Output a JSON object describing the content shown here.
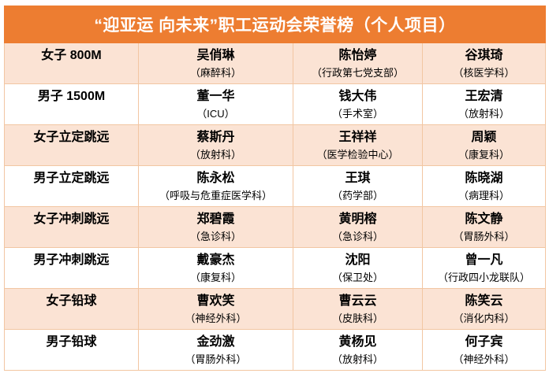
{
  "title": "“迎亚运 向未来”职工运动会荣誉榜（个人项目）",
  "colors": {
    "header_bg": "#ED7D31",
    "header_text": "#FFFFFF",
    "row_alt_bg": "#FBE3D4",
    "row_bg": "#FFFFFF",
    "border": "#F2C6A2",
    "text": "#000000"
  },
  "table": {
    "rows": [
      {
        "event": "女子 800M",
        "winners": [
          {
            "name": "吴俏琳",
            "dept": "（麻醉科）"
          },
          {
            "name": "陈怡婷",
            "dept": "（行政第七党支部）"
          },
          {
            "name": "谷琪琦",
            "dept": "（核医学科）"
          }
        ]
      },
      {
        "event": "男子 1500M",
        "winners": [
          {
            "name": "董一华",
            "dept": "（ICU）"
          },
          {
            "name": "钱大伟",
            "dept": "（手术室）"
          },
          {
            "name": "王宏清",
            "dept": "（放射科）"
          }
        ]
      },
      {
        "event": "女子立定跳远",
        "winners": [
          {
            "name": "蔡斯丹",
            "dept": "（放射科）"
          },
          {
            "name": "王祥祥",
            "dept": "（医学检验中心）"
          },
          {
            "name": "周颖",
            "dept": "（康复科）"
          }
        ]
      },
      {
        "event": "男子立定跳远",
        "winners": [
          {
            "name": "陈永松",
            "dept": "（呼吸与危重症医学科）"
          },
          {
            "name": "王琪",
            "dept": "（药学部）"
          },
          {
            "name": "陈晓湖",
            "dept": "（病理科）"
          }
        ]
      },
      {
        "event": "女子冲刺跳远",
        "winners": [
          {
            "name": "郑碧霞",
            "dept": "（急诊科）"
          },
          {
            "name": "黄明榕",
            "dept": "（急诊科）"
          },
          {
            "name": "陈文静",
            "dept": "（胃肠外科）"
          }
        ]
      },
      {
        "event": "男子冲刺跳远",
        "winners": [
          {
            "name": "戴豪杰",
            "dept": "（康复科）"
          },
          {
            "name": "沈阳",
            "dept": "（保卫处）"
          },
          {
            "name": "曾一凡",
            "dept": "（行政四小龙联队）"
          }
        ]
      },
      {
        "event": "女子铅球",
        "winners": [
          {
            "name": "曹欢笑",
            "dept": "（神经外科）"
          },
          {
            "name": "曹云云",
            "dept": "（皮肤科）"
          },
          {
            "name": "陈笑云",
            "dept": "（消化内科）"
          }
        ]
      },
      {
        "event": "男子铅球",
        "winners": [
          {
            "name": "金劲激",
            "dept": "（胃肠外科）"
          },
          {
            "name": "黄杨见",
            "dept": "（放射科）"
          },
          {
            "name": "何子宾",
            "dept": "（神经外科）"
          }
        ]
      }
    ]
  }
}
